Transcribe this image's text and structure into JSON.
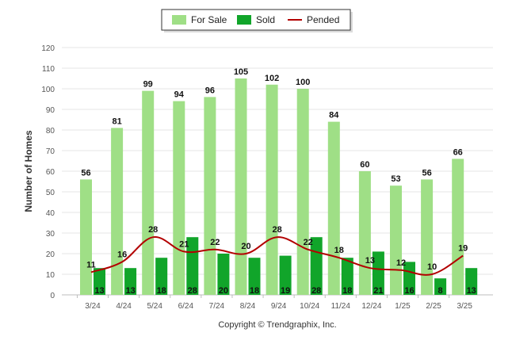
{
  "chart_data": {
    "type": "bar",
    "categories": [
      "3/24",
      "4/24",
      "5/24",
      "6/24",
      "7/24",
      "8/24",
      "9/24",
      "10/24",
      "11/24",
      "12/24",
      "1/25",
      "2/25",
      "3/25"
    ],
    "series": [
      {
        "name": "For Sale",
        "type": "bar",
        "color": "#9fdf86",
        "values": [
          56,
          81,
          99,
          94,
          96,
          105,
          102,
          100,
          84,
          60,
          53,
          56,
          66
        ]
      },
      {
        "name": "Sold",
        "type": "bar",
        "color": "#11a52a",
        "values": [
          13,
          13,
          18,
          28,
          20,
          18,
          19,
          28,
          18,
          21,
          16,
          8,
          13
        ]
      },
      {
        "name": "Pended",
        "type": "line",
        "color": "#b30000",
        "values": [
          11,
          16,
          28,
          21,
          22,
          20,
          28,
          22,
          18,
          13,
          12,
          10,
          19
        ]
      }
    ],
    "ylabel": "Number of Homes",
    "xlabel": "",
    "ylim": [
      0,
      120
    ],
    "yticks": [
      0,
      10,
      20,
      30,
      40,
      50,
      60,
      70,
      80,
      90,
      100,
      110,
      120
    ],
    "grid": true,
    "legend_position": "top-center"
  },
  "footer": {
    "copyright": "Copyright © Trendgraphix, Inc."
  }
}
